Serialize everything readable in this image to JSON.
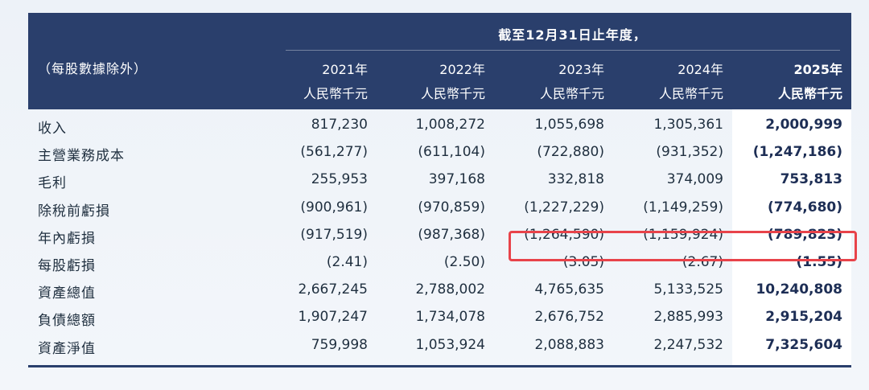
{
  "header": {
    "period_title": "截至12月31日止年度，",
    "note": "（每股數據除外）",
    "unit": "人民幣千元",
    "years": [
      "2021年",
      "2022年",
      "2023年",
      "2024年",
      "2025年"
    ]
  },
  "rows": [
    {
      "label": "收入",
      "values": [
        "817,230",
        "1,008,272",
        "1,055,698",
        "1,305,361",
        "2,000,999"
      ]
    },
    {
      "label": "主營業務成本",
      "values": [
        "(561,277)",
        "(611,104)",
        "(722,880)",
        "(931,352)",
        "(1,247,186)"
      ]
    },
    {
      "label": "毛利",
      "values": [
        "255,953",
        "397,168",
        "332,818",
        "374,009",
        "753,813"
      ]
    },
    {
      "label": "除稅前虧損",
      "values": [
        "(900,961)",
        "(970,859)",
        "(1,227,229)",
        "(1,149,259)",
        "(774,680)"
      ]
    },
    {
      "label": "年內虧損",
      "values": [
        "(917,519)",
        "(987,368)",
        "(1,264,590)",
        "(1,159,924)",
        "(789,823)"
      ]
    },
    {
      "label": "每股虧損",
      "values": [
        "(2.41)",
        "(2.50)",
        "(3.05)",
        "(2.67)",
        "(1.55)"
      ]
    },
    {
      "label": "資產總值",
      "values": [
        "2,667,245",
        "2,788,002",
        "4,765,635",
        "5,133,525",
        "10,240,808"
      ]
    },
    {
      "label": "負債總額",
      "values": [
        "1,907,247",
        "1,734,078",
        "2,676,752",
        "2,885,993",
        "2,915,204"
      ]
    },
    {
      "label": "資產淨值",
      "values": [
        "759,998",
        "1,053,924",
        "2,088,883",
        "2,247,532",
        "7,325,604"
      ]
    }
  ],
  "colors": {
    "header_bg": "#2a3f6c",
    "highlight_box": "#e8434a",
    "current_col_bg": "#ffffff"
  }
}
